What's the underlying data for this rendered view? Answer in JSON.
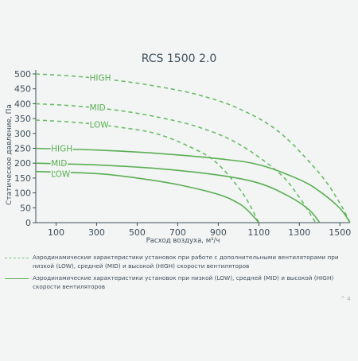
{
  "chart_data": {
    "type": "line",
    "title": "RCS 1500 2.0",
    "xlabel": "Расход воздуха, м³/ч",
    "ylabel": "Статическое давление, Па",
    "xlim": [
      0,
      1550
    ],
    "ylim": [
      0,
      500
    ],
    "x_ticks": [
      100,
      300,
      500,
      700,
      900,
      1100,
      1300,
      1500
    ],
    "y_ticks": [
      0,
      50,
      100,
      150,
      200,
      250,
      300,
      350,
      400,
      450,
      500
    ],
    "grid": false,
    "colors": {
      "series": "#5aae52",
      "axis": "#3f4e5a",
      "label": "#5aae52"
    },
    "series": [
      {
        "name": "HIGH",
        "style": "dashed",
        "x": [
          0,
          200,
          400,
          600,
          800,
          1000,
          1200,
          1400,
          1500,
          1550
        ],
        "y": [
          500,
          492,
          478,
          458,
          430,
          384,
          305,
          165,
          65,
          0
        ]
      },
      {
        "name": "MID",
        "style": "dashed",
        "x": [
          0,
          200,
          400,
          600,
          800,
          1000,
          1200,
          1300,
          1380
        ],
        "y": [
          400,
          392,
          378,
          355,
          322,
          265,
          167,
          85,
          0
        ]
      },
      {
        "name": "LOW",
        "style": "dashed",
        "x": [
          0,
          200,
          400,
          600,
          800,
          900,
          1000,
          1050,
          1100
        ],
        "y": [
          345,
          337,
          322,
          298,
          242,
          196,
          118,
          66,
          0
        ]
      },
      {
        "name": "HIGH",
        "style": "solid",
        "x": [
          0,
          300,
          600,
          900,
          1100,
          1300,
          1400,
          1500,
          1550
        ],
        "y": [
          250,
          244,
          233,
          215,
          195,
          145,
          105,
          48,
          0
        ]
      },
      {
        "name": "MID",
        "style": "solid",
        "x": [
          0,
          300,
          600,
          900,
          1100,
          1250,
          1350,
          1400
        ],
        "y": [
          200,
          194,
          182,
          160,
          133,
          88,
          42,
          0
        ]
      },
      {
        "name": "LOW",
        "style": "solid",
        "x": [
          0,
          300,
          500,
          700,
          900,
          1000,
          1050,
          1100
        ],
        "y": [
          172,
          165,
          150,
          128,
          95,
          65,
          38,
          0
        ]
      }
    ]
  },
  "legend": [
    {
      "style": "dashed",
      "text": "Аэродинамические характеристики установок при работе с дополнительными вентиляторами при низкой (LOW), средней (MID) и высокой (HIGH) скорости вентиляторов"
    },
    {
      "style": "solid",
      "text": "Аэродинамические характеристики установок при низкой (LOW), средней (MID) и высокой (HIGH) скорости вентиляторов"
    }
  ],
  "footer_mark": "^ 4"
}
